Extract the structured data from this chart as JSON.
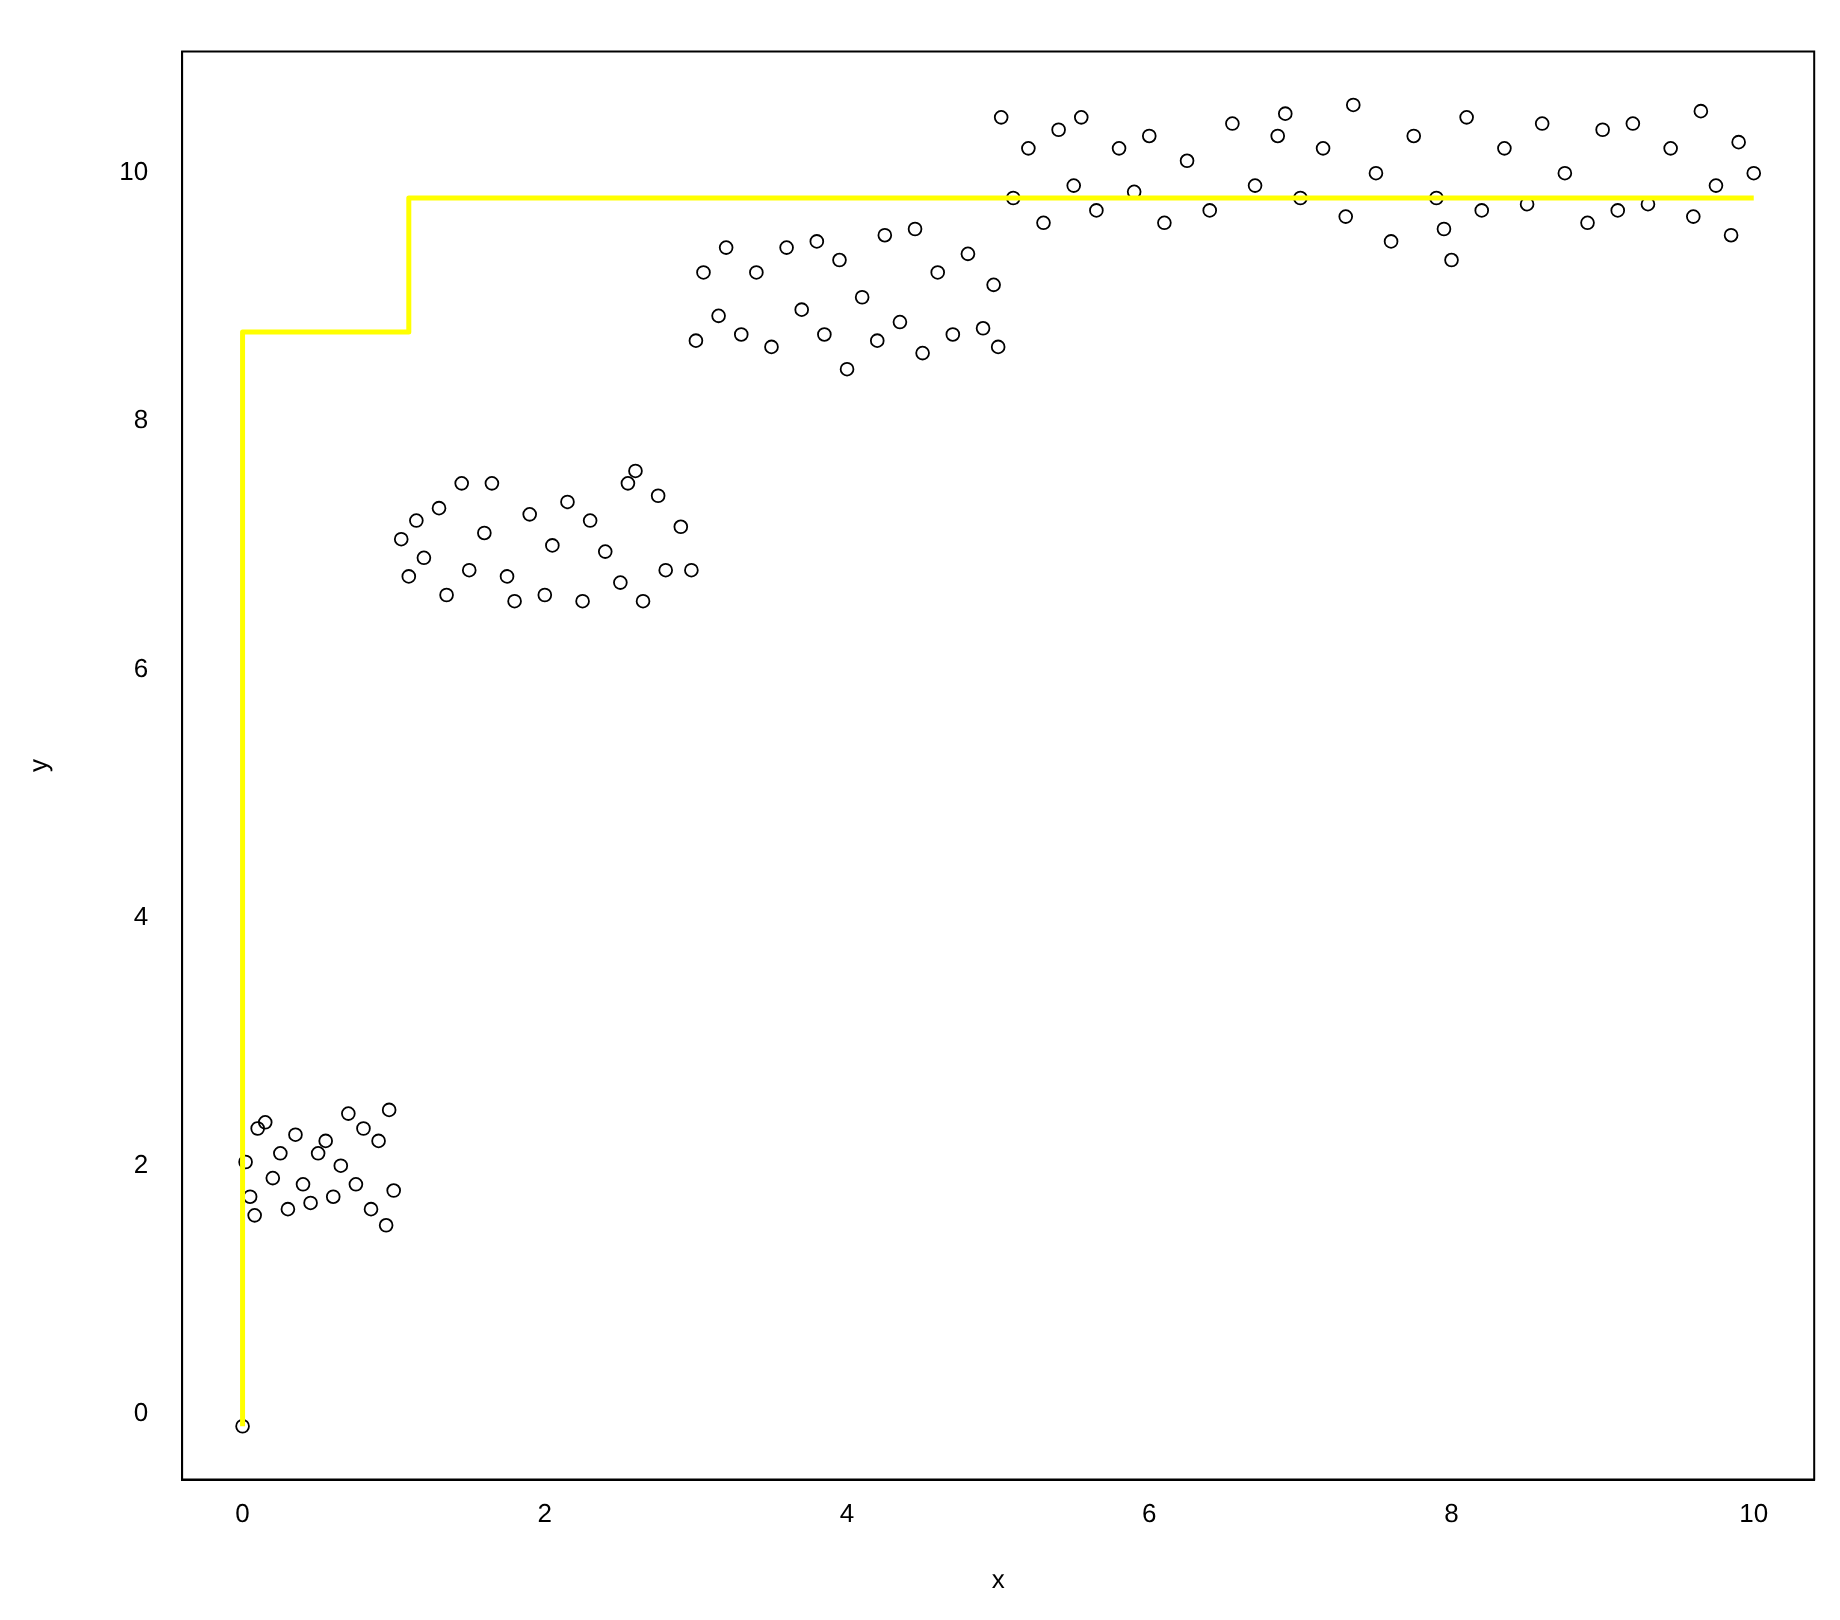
{
  "chart_data": {
    "type": "scatter",
    "xlabel": "x",
    "ylabel": "y",
    "xlim": [
      -0.4,
      10.4
    ],
    "ylim": [
      -0.53,
      10.98
    ],
    "xticks": [
      0,
      2,
      4,
      6,
      8,
      10
    ],
    "yticks": [
      0,
      2,
      4,
      6,
      8,
      10
    ],
    "grid": false,
    "legend": false,
    "series": [
      {
        "type": "scatter",
        "marker": "circle",
        "color": "#000000",
        "x": [
          0,
          0.02,
          0.05,
          0.08,
          0.1,
          0.15,
          0.2,
          0.25,
          0.3,
          0.35,
          0.4,
          0.45,
          0.5,
          0.55,
          0.6,
          0.65,
          0.7,
          0.75,
          0.8,
          0.85,
          0.9,
          0.95,
          0.97,
          1.0,
          1.05,
          1.1,
          1.15,
          1.2,
          1.3,
          1.35,
          1.45,
          1.5,
          1.6,
          1.65,
          1.75,
          1.8,
          1.9,
          2.0,
          2.05,
          2.15,
          2.25,
          2.3,
          2.4,
          2.5,
          2.55,
          2.6,
          2.65,
          2.75,
          2.8,
          2.9,
          2.97,
          3.0,
          3.05,
          3.15,
          3.2,
          3.3,
          3.4,
          3.5,
          3.6,
          3.7,
          3.8,
          3.85,
          3.95,
          4.0,
          4.1,
          4.2,
          4.25,
          4.35,
          4.45,
          4.5,
          4.6,
          4.7,
          4.8,
          4.9,
          4.97,
          5.0,
          5.02,
          5.1,
          5.2,
          5.3,
          5.4,
          5.5,
          5.55,
          5.65,
          5.8,
          5.9,
          6.0,
          6.1,
          6.25,
          6.4,
          6.55,
          6.7,
          6.85,
          6.9,
          7.0,
          7.15,
          7.3,
          7.35,
          7.5,
          7.6,
          7.75,
          7.9,
          7.95,
          8.0,
          8.1,
          8.2,
          8.35,
          8.5,
          8.6,
          8.75,
          8.9,
          9.0,
          9.1,
          9.2,
          9.3,
          9.45,
          9.6,
          9.65,
          9.75,
          9.85,
          9.9,
          10.0
        ],
        "values": [
          -0.1,
          2.03,
          1.75,
          1.6,
          2.3,
          2.35,
          1.9,
          2.1,
          1.65,
          2.25,
          1.85,
          1.7,
          2.1,
          2.2,
          1.75,
          2.0,
          2.42,
          1.85,
          2.3,
          1.65,
          2.2,
          1.52,
          2.45,
          1.8,
          7.05,
          6.75,
          7.2,
          6.9,
          7.3,
          6.6,
          7.5,
          6.8,
          7.1,
          7.5,
          6.75,
          6.55,
          7.25,
          6.6,
          7.0,
          7.35,
          6.55,
          7.2,
          6.95,
          6.7,
          7.5,
          7.6,
          6.55,
          7.4,
          6.8,
          7.15,
          6.8,
          8.65,
          9.2,
          8.85,
          9.4,
          8.7,
          9.2,
          8.6,
          9.4,
          8.9,
          9.45,
          8.7,
          9.3,
          8.42,
          9.0,
          8.65,
          9.5,
          8.8,
          9.55,
          8.55,
          9.2,
          8.7,
          9.35,
          8.75,
          9.1,
          8.6,
          10.45,
          9.8,
          10.2,
          9.6,
          10.35,
          9.9,
          10.45,
          9.7,
          10.2,
          9.85,
          10.3,
          9.6,
          10.1,
          9.7,
          10.4,
          9.9,
          10.3,
          10.48,
          9.8,
          10.2,
          9.65,
          10.55,
          10.0,
          9.45,
          10.3,
          9.8,
          9.55,
          9.3,
          10.45,
          9.7,
          10.2,
          9.75,
          10.4,
          10.0,
          9.6,
          10.35,
          9.7,
          10.4,
          9.75,
          10.2,
          9.65,
          10.5,
          9.9,
          9.5,
          10.25,
          10.0
        ]
      },
      {
        "type": "step",
        "color": "#ffff00",
        "x": [
          0,
          0,
          1.1,
          4.25,
          10
        ],
        "values": [
          -0.1,
          3.37,
          8.72,
          9.8,
          9.8
        ]
      }
    ]
  }
}
